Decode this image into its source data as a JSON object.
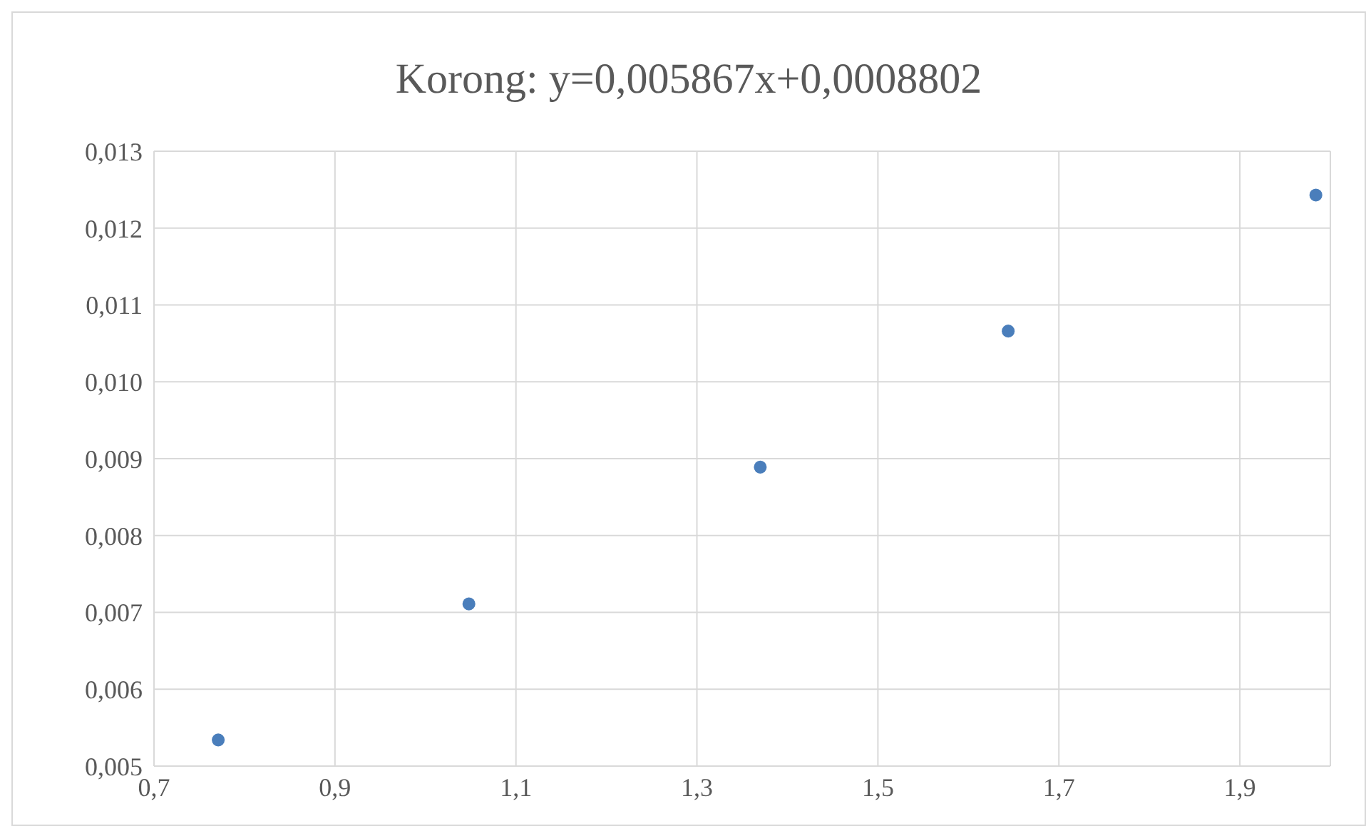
{
  "chart_data": {
    "type": "scatter",
    "title": "Korong: y=0,005867x+0,0008802",
    "x": [
      0.771,
      1.048,
      1.37,
      1.644,
      1.984
    ],
    "series": [
      {
        "color": "#4a7ebb",
        "values": [
          0.00534,
          0.00711,
          0.00889,
          0.01066,
          0.01243
        ]
      }
    ],
    "xlim": [
      0.7,
      2.0
    ],
    "xticks": [
      {
        "value": 0.7,
        "label": "0,7"
      },
      {
        "value": 0.9,
        "label": "0,9"
      },
      {
        "value": 1.1,
        "label": "1,1"
      },
      {
        "value": 1.3,
        "label": "1,3"
      },
      {
        "value": 1.5,
        "label": "1,5"
      },
      {
        "value": 1.7,
        "label": "1,7"
      },
      {
        "value": 1.9,
        "label": "1,9"
      }
    ],
    "ylim": [
      0.005,
      0.013
    ],
    "yticks": [
      {
        "value": 0.005,
        "label": "0,005"
      },
      {
        "value": 0.006,
        "label": "0,006"
      },
      {
        "value": 0.007,
        "label": "0,007"
      },
      {
        "value": 0.008,
        "label": "0,008"
      },
      {
        "value": 0.009,
        "label": "0,009"
      },
      {
        "value": 0.01,
        "label": "0,010"
      },
      {
        "value": 0.011,
        "label": "0,011"
      },
      {
        "value": 0.012,
        "label": "0,012"
      },
      {
        "value": 0.013,
        "label": "0,013"
      }
    ],
    "grid": true,
    "marker": "circle"
  }
}
